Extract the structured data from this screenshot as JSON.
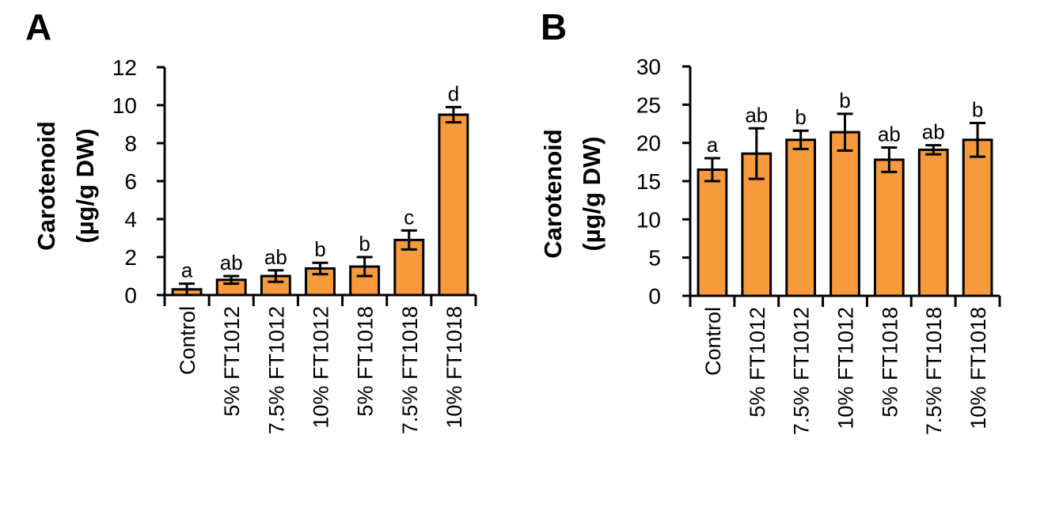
{
  "colors": {
    "bar_fill": "#F79A3B",
    "axis": "#000000"
  },
  "chart_data": [
    {
      "panel": "A",
      "type": "bar",
      "title": "",
      "xlabel": "",
      "ylabel": [
        "Carotenoid",
        "(µg/g DW)"
      ],
      "ylim": [
        0,
        12
      ],
      "yticks": [
        0,
        2,
        4,
        6,
        8,
        10,
        12
      ],
      "grid": false,
      "legend": "none",
      "categories": [
        "Control",
        "5% FT1012",
        "7.5% FT1012",
        "10% FT1012",
        "5% FT1018",
        "7.5% FT1018",
        "10% FT1018"
      ],
      "values": [
        0.3,
        0.8,
        1.0,
        1.4,
        1.5,
        2.9,
        9.5
      ],
      "errors": [
        0.3,
        0.2,
        0.3,
        0.3,
        0.5,
        0.5,
        0.4
      ],
      "significance_letters": [
        "a",
        "ab",
        "ab",
        "b",
        "b",
        "c",
        "d"
      ]
    },
    {
      "panel": "B",
      "type": "bar",
      "title": "",
      "xlabel": "",
      "ylabel": [
        "Carotenoid",
        "(µg/g DW)"
      ],
      "ylim": [
        0,
        30
      ],
      "yticks": [
        0,
        5,
        10,
        15,
        20,
        25,
        30
      ],
      "grid": false,
      "legend": "none",
      "categories": [
        "Control",
        "5% FT1012",
        "7.5% FT1012",
        "10% FT1012",
        "5% FT1018",
        "7.5% FT1018",
        "10% FT1018"
      ],
      "values": [
        16.5,
        18.6,
        20.4,
        21.4,
        17.8,
        19.1,
        20.4
      ],
      "errors": [
        1.5,
        3.3,
        1.2,
        2.4,
        1.6,
        0.6,
        2.2
      ],
      "significance_letters": [
        "a",
        "ab",
        "b",
        "b",
        "ab",
        "ab",
        "b"
      ]
    }
  ]
}
